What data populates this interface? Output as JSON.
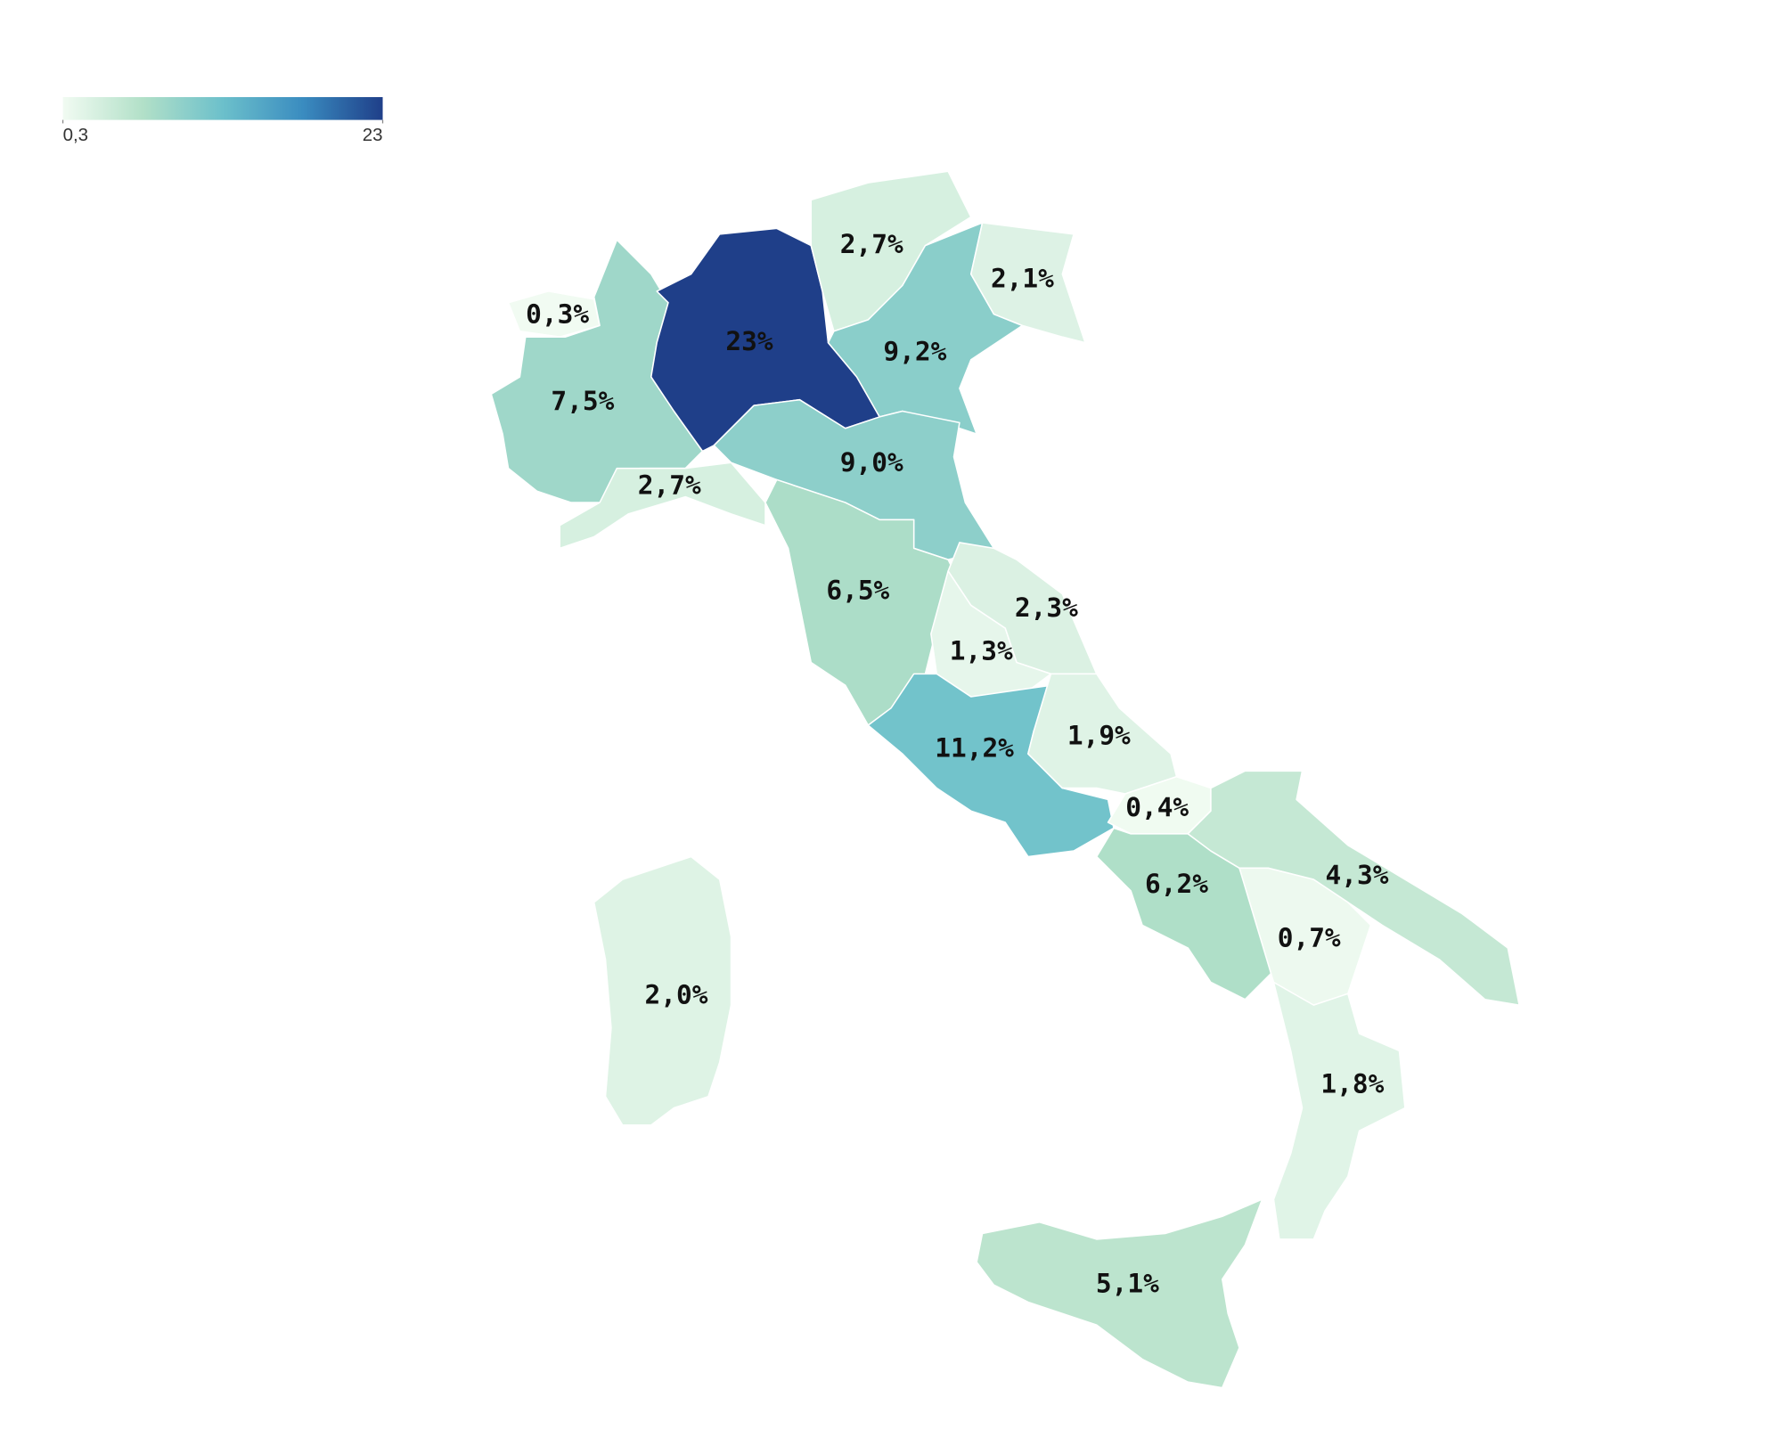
{
  "chart_data": {
    "type": "choropleth",
    "clim": [
      0.3,
      23
    ],
    "ticks": [
      {
        "value": 0.3,
        "label": "0,3"
      },
      23
    ],
    "colors": [
      "#f1fbf2",
      "#b2e0c8",
      "#6cc0cb",
      "#3a8cc0",
      "#1f3f89"
    ],
    "values": [
      0.3,
      7.5,
      23,
      2.7,
      9.2,
      2.1,
      2.7,
      9.0,
      6.5,
      2.3,
      1.3,
      11.2,
      1.9,
      0.4,
      6.2,
      4.3,
      0.7,
      1.8,
      2.0,
      5.1
    ],
    "value_labels": [
      "0,3%",
      "7,5%",
      "23%",
      "2,7%",
      "9,2%",
      "2,1%",
      "2,7%",
      "9,0%",
      "6,5%",
      "2,3%",
      "1,3%",
      "11,2%",
      "1,9%",
      "0,4%",
      "6,2%",
      "4,3%",
      "0,7%",
      "1,8%",
      "2,0%",
      "5,1%"
    ]
  }
}
